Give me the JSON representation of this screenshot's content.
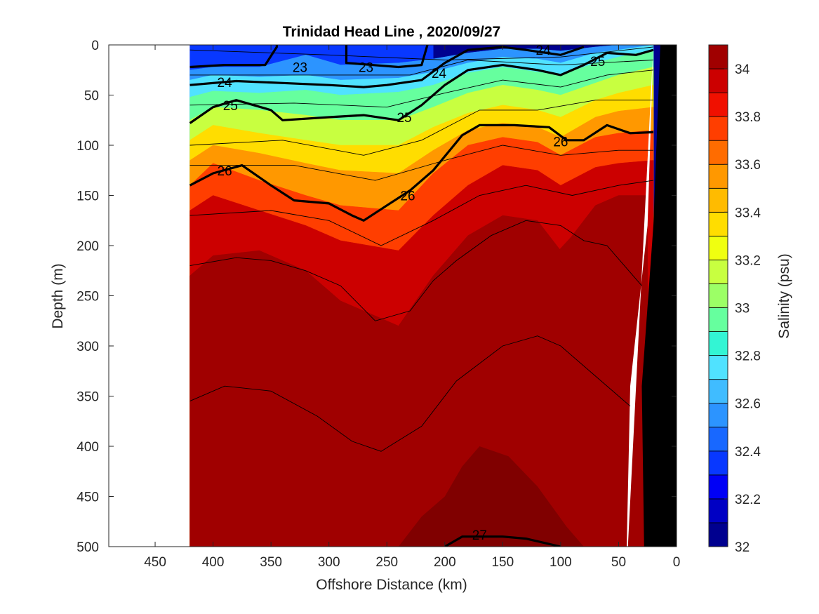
{
  "chart_data": {
    "type": "heatmap",
    "title": "Trinidad Head Line , 2020/09/27",
    "xlabel": "Offshore Distance (km)",
    "ylabel": "Depth (m)",
    "colorbar_label": "Salinity (psu)",
    "xlim": [
      490,
      0
    ],
    "ylim": [
      0,
      500
    ],
    "x_reversed": true,
    "y_reversed": true,
    "x_ticks": [
      450,
      400,
      350,
      300,
      250,
      200,
      150,
      100,
      50,
      0
    ],
    "y_ticks": [
      0,
      50,
      100,
      150,
      200,
      250,
      300,
      350,
      400,
      450,
      500
    ],
    "colorbar": {
      "range": [
        32,
        34.1
      ],
      "ticks": [
        32,
        32.2,
        32.4,
        32.6,
        32.8,
        33,
        33.2,
        33.4,
        33.6,
        33.8,
        34
      ],
      "levels": [
        32.0,
        32.1,
        32.2,
        32.3,
        32.4,
        32.5,
        32.6,
        32.7,
        32.8,
        32.9,
        33.0,
        33.1,
        33.2,
        33.3,
        33.4,
        33.5,
        33.6,
        33.7,
        33.8,
        33.9,
        34.0
      ],
      "colors": [
        "#00008f",
        "#0000c4",
        "#0000f6",
        "#0838ff",
        "#1868ff",
        "#2c94ff",
        "#40bcff",
        "#50e2ff",
        "#33f5d4",
        "#66ff9e",
        "#9cff66",
        "#c8ff40",
        "#f0ff10",
        "#ffdd00",
        "#ffbb00",
        "#ff9800",
        "#ff6c00",
        "#ff3e00",
        "#f01000",
        "#cc0000",
        "#a00000"
      ]
    },
    "data_extent_km": [
      0,
      420
    ],
    "bathymetry_km_at_depth": [
      [
        0,
        0
      ],
      [
        25,
        180
      ],
      [
        40,
        340
      ],
      [
        43,
        500
      ]
    ],
    "salinity_boundaries": [
      {
        "level": 32.3,
        "depth": [
          [
            420,
            0
          ],
          [
            400,
            0
          ],
          [
            360,
            0
          ],
          [
            320,
            0
          ],
          [
            290,
            0
          ],
          [
            240,
            0
          ],
          [
            210,
            0
          ]
        ]
      },
      {
        "level": 32.5,
        "depth": [
          [
            420,
            25
          ],
          [
            400,
            22
          ],
          [
            360,
            22
          ],
          [
            320,
            10
          ],
          [
            290,
            20
          ],
          [
            240,
            18
          ],
          [
            210,
            14
          ],
          [
            180,
            8
          ],
          [
            150,
            4
          ],
          [
            120,
            4
          ],
          [
            100,
            6
          ],
          [
            70,
            2
          ],
          [
            50,
            0
          ],
          [
            20,
            0
          ]
        ]
      },
      {
        "level": 32.7,
        "depth": [
          [
            420,
            35
          ],
          [
            400,
            30
          ],
          [
            360,
            32
          ],
          [
            320,
            30
          ],
          [
            290,
            35
          ],
          [
            240,
            33
          ],
          [
            210,
            27
          ],
          [
            180,
            18
          ],
          [
            150,
            12
          ],
          [
            120,
            14
          ],
          [
            100,
            18
          ],
          [
            70,
            8
          ],
          [
            50,
            5
          ],
          [
            20,
            0
          ]
        ]
      },
      {
        "level": 32.9,
        "depth": [
          [
            420,
            52
          ],
          [
            400,
            46
          ],
          [
            360,
            48
          ],
          [
            320,
            45
          ],
          [
            290,
            50
          ],
          [
            240,
            47
          ],
          [
            210,
            40
          ],
          [
            180,
            28
          ],
          [
            150,
            22
          ],
          [
            120,
            27
          ],
          [
            100,
            30
          ],
          [
            70,
            18
          ],
          [
            50,
            12
          ],
          [
            20,
            5
          ]
        ]
      },
      {
        "level": 33.1,
        "depth": [
          [
            420,
            75
          ],
          [
            400,
            62
          ],
          [
            360,
            65
          ],
          [
            320,
            70
          ],
          [
            290,
            75
          ],
          [
            240,
            75
          ],
          [
            210,
            62
          ],
          [
            180,
            48
          ],
          [
            150,
            40
          ],
          [
            120,
            45
          ],
          [
            100,
            50
          ],
          [
            70,
            38
          ],
          [
            50,
            30
          ],
          [
            20,
            22
          ]
        ]
      },
      {
        "level": 33.3,
        "depth": [
          [
            420,
            95
          ],
          [
            400,
            80
          ],
          [
            360,
            88
          ],
          [
            320,
            95
          ],
          [
            290,
            100
          ],
          [
            240,
            100
          ],
          [
            210,
            82
          ],
          [
            180,
            68
          ],
          [
            150,
            60
          ],
          [
            120,
            65
          ],
          [
            100,
            72
          ],
          [
            70,
            55
          ],
          [
            50,
            48
          ],
          [
            20,
            40
          ]
        ]
      },
      {
        "level": 33.5,
        "depth": [
          [
            420,
            115
          ],
          [
            400,
            100
          ],
          [
            360,
            108
          ],
          [
            320,
            118
          ],
          [
            290,
            125
          ],
          [
            240,
            128
          ],
          [
            210,
            105
          ],
          [
            180,
            85
          ],
          [
            150,
            78
          ],
          [
            120,
            82
          ],
          [
            100,
            92
          ],
          [
            70,
            72
          ],
          [
            50,
            66
          ],
          [
            20,
            62
          ]
        ]
      },
      {
        "level": 33.7,
        "depth": [
          [
            420,
            140
          ],
          [
            400,
            118
          ],
          [
            360,
            135
          ],
          [
            320,
            150
          ],
          [
            290,
            160
          ],
          [
            240,
            165
          ],
          [
            210,
            128
          ],
          [
            180,
            100
          ],
          [
            150,
            92
          ],
          [
            120,
            97
          ],
          [
            100,
            110
          ],
          [
            70,
            92
          ],
          [
            50,
            88
          ],
          [
            20,
            85
          ]
        ]
      },
      {
        "level": 33.9,
        "depth": [
          [
            420,
            165
          ],
          [
            400,
            150
          ],
          [
            360,
            165
          ],
          [
            320,
            180
          ],
          [
            290,
            195
          ],
          [
            240,
            205
          ],
          [
            210,
            170
          ],
          [
            180,
            140
          ],
          [
            150,
            120
          ],
          [
            120,
            125
          ],
          [
            100,
            140
          ],
          [
            70,
            122
          ],
          [
            50,
            118
          ],
          [
            20,
            115
          ]
        ]
      },
      {
        "level": 34.0,
        "depth": [
          [
            420,
            230
          ],
          [
            400,
            210
          ],
          [
            360,
            205
          ],
          [
            320,
            225
          ],
          [
            290,
            255
          ],
          [
            240,
            280
          ],
          [
            210,
            230
          ],
          [
            180,
            190
          ],
          [
            150,
            170
          ],
          [
            120,
            175
          ],
          [
            100,
            205
          ],
          [
            70,
            160
          ],
          [
            50,
            150
          ],
          [
            25,
            150
          ]
        ]
      }
    ],
    "density_contours": [
      {
        "label": "23",
        "bold": true,
        "points": [
          [
            420,
            22
          ],
          [
            390,
            20
          ],
          [
            355,
            20
          ],
          [
            345,
            2
          ],
          [
            345,
            0
          ]
        ]
      },
      {
        "label": "23",
        "bold": true,
        "points": [
          [
            285,
            0
          ],
          [
            285,
            18
          ],
          [
            240,
            22
          ],
          [
            220,
            20
          ],
          [
            215,
            0
          ]
        ]
      },
      {
        "label": "24",
        "bold": true,
        "points": [
          [
            420,
            40
          ],
          [
            380,
            36
          ],
          [
            340,
            38
          ],
          [
            300,
            40
          ],
          [
            270,
            42
          ],
          [
            250,
            40
          ],
          [
            220,
            35
          ],
          [
            200,
            18
          ],
          [
            180,
            5
          ],
          [
            150,
            2
          ],
          [
            130,
            5
          ],
          [
            100,
            10
          ],
          [
            80,
            2
          ]
        ]
      },
      {
        "label": "25",
        "bold": true,
        "points": [
          [
            420,
            78
          ],
          [
            400,
            62
          ],
          [
            380,
            55
          ],
          [
            350,
            65
          ],
          [
            340,
            75
          ],
          [
            300,
            72
          ],
          [
            270,
            70
          ],
          [
            240,
            75
          ],
          [
            220,
            60
          ],
          [
            200,
            40
          ],
          [
            180,
            25
          ],
          [
            150,
            20
          ],
          [
            120,
            25
          ],
          [
            100,
            30
          ],
          [
            80,
            20
          ],
          [
            60,
            8
          ],
          [
            35,
            10
          ],
          [
            20,
            5
          ]
        ]
      },
      {
        "label": "26",
        "bold": true,
        "points": [
          [
            420,
            140
          ],
          [
            400,
            128
          ],
          [
            375,
            120
          ],
          [
            350,
            140
          ],
          [
            330,
            155
          ],
          [
            300,
            158
          ],
          [
            280,
            170
          ],
          [
            270,
            175
          ],
          [
            250,
            160
          ],
          [
            230,
            145
          ],
          [
            210,
            125
          ],
          [
            185,
            90
          ],
          [
            170,
            80
          ],
          [
            140,
            80
          ],
          [
            110,
            82
          ],
          [
            95,
            95
          ],
          [
            80,
            95
          ],
          [
            60,
            80
          ],
          [
            40,
            88
          ],
          [
            20,
            87
          ]
        ]
      },
      {
        "label": "27",
        "bold": true,
        "points": [
          [
            200,
            500
          ],
          [
            185,
            490
          ],
          [
            150,
            490
          ],
          [
            130,
            492
          ],
          [
            100,
            500
          ]
        ]
      }
    ],
    "thin_contours": [
      [
        [
          420,
          220
        ],
        [
          380,
          212
        ],
        [
          350,
          215
        ],
        [
          320,
          225
        ],
        [
          290,
          240
        ],
        [
          260,
          275
        ],
        [
          230,
          265
        ],
        [
          210,
          235
        ],
        [
          190,
          215
        ],
        [
          160,
          190
        ],
        [
          130,
          175
        ],
        [
          100,
          180
        ],
        [
          80,
          195
        ],
        [
          60,
          200
        ],
        [
          30,
          240
        ]
      ],
      [
        [
          420,
          355
        ],
        [
          390,
          340
        ],
        [
          350,
          345
        ],
        [
          310,
          370
        ],
        [
          280,
          395
        ],
        [
          255,
          405
        ],
        [
          220,
          380
        ],
        [
          190,
          335
        ],
        [
          150,
          300
        ],
        [
          120,
          290
        ],
        [
          100,
          300
        ],
        [
          70,
          330
        ],
        [
          40,
          360
        ]
      ],
      [
        [
          420,
          5
        ],
        [
          300,
          10
        ],
        [
          200,
          15
        ],
        [
          100,
          12
        ],
        [
          20,
          2
        ]
      ],
      [
        [
          420,
          30
        ],
        [
          300,
          30
        ],
        [
          230,
          30
        ],
        [
          180,
          15
        ],
        [
          100,
          20
        ],
        [
          20,
          15
        ]
      ],
      [
        [
          420,
          60
        ],
        [
          330,
          58
        ],
        [
          250,
          62
        ],
        [
          200,
          48
        ],
        [
          150,
          35
        ],
        [
          100,
          42
        ],
        [
          60,
          30
        ],
        [
          20,
          25
        ]
      ],
      [
        [
          420,
          100
        ],
        [
          340,
          95
        ],
        [
          270,
          110
        ],
        [
          220,
          95
        ],
        [
          170,
          65
        ],
        [
          120,
          65
        ],
        [
          70,
          55
        ],
        [
          20,
          55
        ]
      ],
      [
        [
          420,
          120
        ],
        [
          330,
          120
        ],
        [
          260,
          135
        ],
        [
          200,
          115
        ],
        [
          150,
          100
        ],
        [
          100,
          110
        ],
        [
          50,
          105
        ],
        [
          20,
          105
        ]
      ],
      [
        [
          420,
          170
        ],
        [
          350,
          165
        ],
        [
          300,
          175
        ],
        [
          255,
          200
        ],
        [
          210,
          175
        ],
        [
          170,
          150
        ],
        [
          130,
          140
        ],
        [
          90,
          150
        ],
        [
          50,
          140
        ],
        [
          20,
          135
        ]
      ]
    ]
  }
}
